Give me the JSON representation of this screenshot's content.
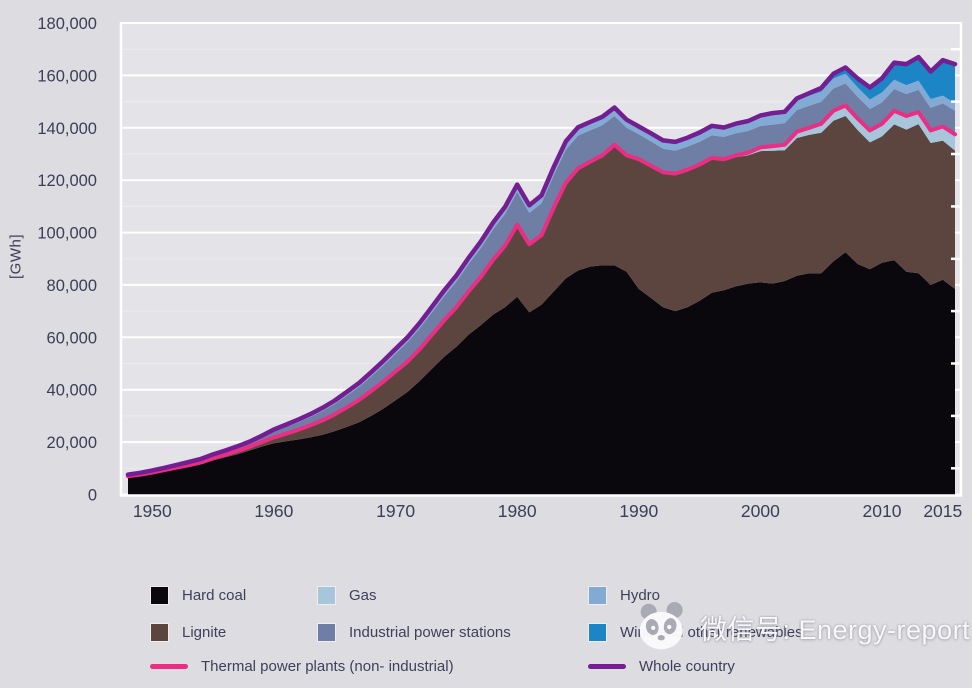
{
  "page": {
    "background": "#dcdce1",
    "plot_background": "#e3e3e8",
    "axis_text_color": "#3d3d58"
  },
  "y_axis": {
    "unit_label": "[GWh]",
    "ticks": [
      "0",
      "20,000",
      "40,000",
      "60,000",
      "80,000",
      "100,000",
      "120,000",
      "140,000",
      "160,000",
      "180,000"
    ],
    "step": 20000
  },
  "x_axis": {
    "ticks": [
      1950,
      1960,
      1970,
      1980,
      1990,
      2000,
      2010,
      2015
    ]
  },
  "chart_data": {
    "type": "area",
    "stacked": true,
    "title": "",
    "xlabel": "",
    "ylabel": "[GWh]",
    "x_start": 1948,
    "x_end": 2016,
    "ylim": [
      0,
      180000
    ],
    "grid": "horizontal-white-major-20000-minor-10000",
    "legend_position": "bottom",
    "series": [
      {
        "name": "Hard coal",
        "color": "#0a070d",
        "values": [
          6600,
          7200,
          7900,
          8700,
          9600,
          10500,
          11500,
          13000,
          14200,
          15400,
          16800,
          18300,
          19600,
          20300,
          21000,
          21800,
          22800,
          24200,
          25800,
          27600,
          30000,
          32800,
          36000,
          39200,
          43400,
          48000,
          52600,
          56400,
          61000,
          64600,
          68600,
          71500,
          75500,
          69500,
          72500,
          77500,
          82500,
          85500,
          87000,
          87500,
          87500,
          85000,
          78500,
          75000,
          71500,
          70000,
          71500,
          74000,
          77000,
          78000,
          79500,
          80500,
          81000,
          80500,
          81500,
          83500,
          84500,
          84500,
          89000,
          92500,
          88000,
          86000,
          88500,
          89500,
          85000,
          84500,
          80000,
          82000,
          78500
        ]
      },
      {
        "name": "Lignite",
        "color": "#5b453e",
        "values": [
          400,
          400,
          500,
          600,
          700,
          700,
          800,
          900,
          1000,
          1200,
          1400,
          1700,
          2200,
          2900,
          3700,
          4600,
          5500,
          6400,
          7500,
          8500,
          9500,
          10300,
          11000,
          11600,
          12200,
          13000,
          13900,
          15100,
          16500,
          18400,
          20900,
          23500,
          27500,
          26000,
          26500,
          32000,
          36500,
          39000,
          40000,
          42000,
          46000,
          44500,
          49500,
          50500,
          51500,
          52500,
          52500,
          52000,
          51500,
          49600,
          49300,
          49000,
          50100,
          50700,
          49900,
          52600,
          52800,
          53600,
          53700,
          52000,
          51100,
          48400,
          48200,
          51800,
          54300,
          56900,
          54200,
          53100,
          52800
        ]
      },
      {
        "name": "Gas",
        "color": "#a7c6db",
        "values": [
          0,
          0,
          0,
          0,
          0,
          0,
          0,
          0,
          0,
          0,
          0,
          0,
          0,
          0,
          0,
          0,
          0,
          0,
          0,
          0,
          0,
          0,
          0,
          0,
          0,
          0,
          0,
          0,
          0,
          0,
          0,
          0,
          0,
          0,
          0,
          0,
          0,
          0,
          0,
          0,
          0,
          0,
          0,
          0,
          0,
          0,
          0,
          0,
          0,
          400,
          700,
          1000,
          1400,
          1800,
          2100,
          2400,
          2700,
          3400,
          3800,
          4000,
          4400,
          4600,
          4800,
          5200,
          5200,
          4600,
          4800,
          5400,
          6200
        ]
      },
      {
        "name": "Industrial power stations",
        "color": "#6f7ea4",
        "values": [
          450,
          500,
          600,
          700,
          800,
          900,
          1000,
          1100,
          1300,
          1500,
          1700,
          2000,
          2300,
          2600,
          2900,
          3200,
          3600,
          4000,
          4500,
          5000,
          5600,
          6200,
          6800,
          7400,
          8000,
          8600,
          9200,
          9800,
          10400,
          11000,
          11600,
          12100,
          12500,
          12000,
          12200,
          12400,
          12600,
          12500,
          12000,
          11500,
          11000,
          10500,
          9500,
          9300,
          9000,
          8800,
          8800,
          8700,
          8600,
          8500,
          8400,
          8300,
          8200,
          8200,
          8300,
          8300,
          8400,
          8400,
          8500,
          8400,
          8300,
          8200,
          8200,
          8300,
          8400,
          8500,
          8600,
          8800,
          9000
        ]
      },
      {
        "name": "Hydro",
        "color": "#82aad4",
        "values": [
          150,
          200,
          200,
          200,
          200,
          300,
          300,
          300,
          300,
          300,
          300,
          400,
          700,
          900,
          1000,
          1100,
          1200,
          1300,
          1400,
          1500,
          1600,
          1700,
          1800,
          1900,
          2000,
          2100,
          2200,
          2300,
          2400,
          2500,
          2600,
          2700,
          2800,
          2900,
          3000,
          3100,
          3200,
          3200,
          3200,
          3200,
          3200,
          3100,
          3000,
          3100,
          3200,
          3300,
          3400,
          3500,
          3600,
          3600,
          3700,
          3800,
          4000,
          4100,
          3900,
          3800,
          3900,
          3900,
          3800,
          3700,
          3600,
          3600,
          3800,
          3500,
          3400,
          3500,
          3400,
          3000,
          2800
        ]
      },
      {
        "name": "Wind and other renewables",
        "color": "#1b85c5",
        "values": [
          0,
          0,
          0,
          0,
          0,
          0,
          0,
          0,
          0,
          0,
          0,
          0,
          0,
          0,
          0,
          0,
          0,
          0,
          0,
          0,
          0,
          0,
          0,
          0,
          0,
          0,
          0,
          0,
          0,
          0,
          0,
          0,
          0,
          0,
          0,
          0,
          0,
          0,
          0,
          0,
          0,
          0,
          0,
          0,
          0,
          0,
          0,
          0,
          0,
          0,
          0,
          0,
          0,
          300,
          400,
          600,
          900,
          1400,
          1800,
          2400,
          3400,
          4600,
          5400,
          6600,
          8000,
          9000,
          10500,
          13500,
          15000
        ]
      }
    ],
    "lines": [
      {
        "name": "Thermal power plants (non- industrial)",
        "color": "#ea2e83",
        "stack_level": 3,
        "width": 4
      },
      {
        "name": "Whole country",
        "color": "#731f92",
        "stack_level": 6,
        "width": 4.5
      }
    ]
  },
  "legend": {
    "items": [
      {
        "label": "Hard coal",
        "color": "#0a070d",
        "type": "area"
      },
      {
        "label": "Gas",
        "color": "#a7c6db",
        "type": "area"
      },
      {
        "label": "Hydro",
        "color": "#82aad4",
        "type": "area"
      },
      {
        "label": "Lignite",
        "color": "#5b453e",
        "type": "area"
      },
      {
        "label": "Industrial power stations",
        "color": "#6f7ea4",
        "type": "area"
      },
      {
        "label": "Wind and other renewables",
        "color": "#1b85c5",
        "type": "area"
      },
      {
        "label": "Thermal power plants (non- industrial)",
        "color": "#ea2e83",
        "type": "line"
      },
      {
        "label": "Whole country",
        "color": "#731f92",
        "type": "line"
      }
    ]
  },
  "watermark": {
    "text": "微信号: Energy-report",
    "icon": "panda-logo"
  }
}
